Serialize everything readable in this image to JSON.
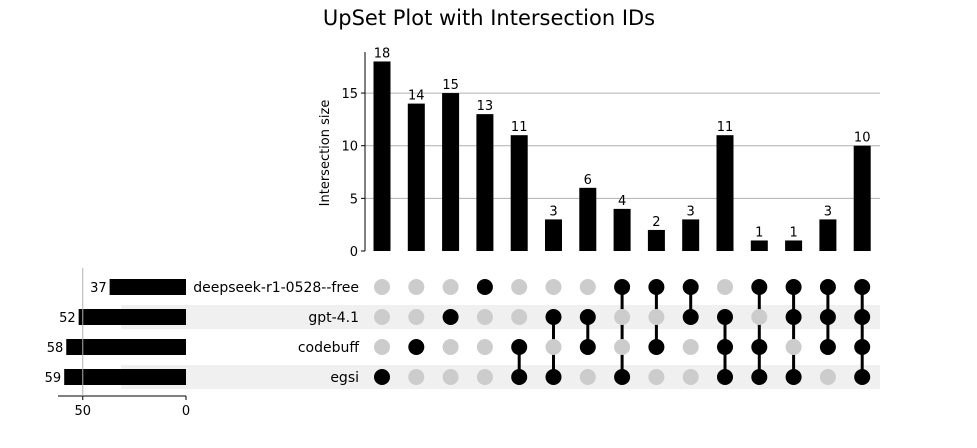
{
  "chart_data": {
    "type": "bar",
    "title": "UpSet Plot with Intersection IDs",
    "ylabel": "Intersection size",
    "ylim": [
      0,
      18.9
    ],
    "yticks": [
      0,
      5,
      10,
      15
    ],
    "grid": true,
    "sets": [
      "deepseek-r1-0528--free",
      "gpt-4.1",
      "codebuff",
      "egsi"
    ],
    "set_sizes": [
      37,
      52,
      58,
      59
    ],
    "set_size_ticks": [
      50,
      0
    ],
    "set_size_max": 62,
    "intersections": [
      {
        "members": [
          0,
          0,
          0,
          1
        ],
        "size": 18
      },
      {
        "members": [
          0,
          0,
          1,
          0
        ],
        "size": 14
      },
      {
        "members": [
          0,
          1,
          0,
          0
        ],
        "size": 15
      },
      {
        "members": [
          1,
          0,
          0,
          0
        ],
        "size": 13
      },
      {
        "members": [
          0,
          0,
          1,
          1
        ],
        "size": 11
      },
      {
        "members": [
          0,
          1,
          0,
          1
        ],
        "size": 3
      },
      {
        "members": [
          0,
          1,
          1,
          0
        ],
        "size": 6
      },
      {
        "members": [
          1,
          0,
          0,
          1
        ],
        "size": 4
      },
      {
        "members": [
          1,
          0,
          1,
          0
        ],
        "size": 2
      },
      {
        "members": [
          1,
          1,
          0,
          0
        ],
        "size": 3
      },
      {
        "members": [
          0,
          1,
          1,
          1
        ],
        "size": 11
      },
      {
        "members": [
          1,
          0,
          1,
          1
        ],
        "size": 1
      },
      {
        "members": [
          1,
          1,
          0,
          1
        ],
        "size": 1
      },
      {
        "members": [
          1,
          1,
          1,
          0
        ],
        "size": 3
      },
      {
        "members": [
          1,
          1,
          1,
          1
        ],
        "size": 10
      }
    ],
    "colors": {
      "bar": "#000000",
      "dot_active": "#000000",
      "dot_inactive": "#cccccc",
      "stripe": "#f0f0f0",
      "grid": "#b0b0b0"
    }
  }
}
